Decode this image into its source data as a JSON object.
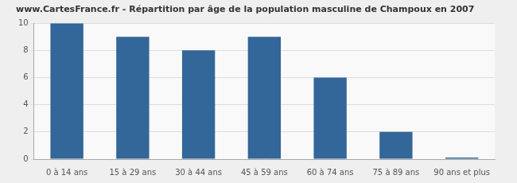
{
  "chart_data": {
    "type": "bar",
    "title": "www.CartesFrance.fr - Répartition par âge de la population masculine de Champoux en 2007",
    "categories": [
      "0 à 14 ans",
      "15 à 29 ans",
      "30 à 44 ans",
      "45 à 59 ans",
      "60 à 74 ans",
      "75 à 89 ans",
      "90 ans et plus"
    ],
    "values": [
      10,
      9,
      8,
      9,
      6,
      2,
      0
    ],
    "color": "#336699",
    "ylim": [
      0,
      10
    ],
    "yticks": [
      0,
      2,
      4,
      6,
      8,
      10
    ],
    "grid": true
  }
}
